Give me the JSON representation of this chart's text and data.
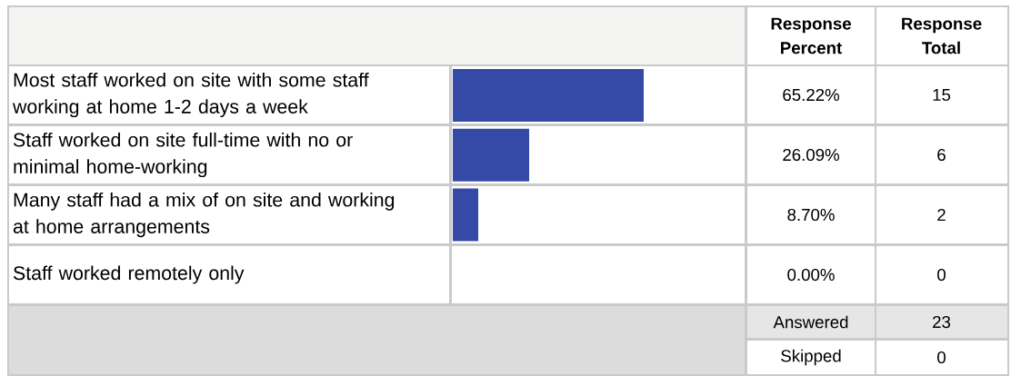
{
  "chart_data": {
    "type": "bar",
    "orientation": "horizontal",
    "categories": [
      "Most staff worked on site with some staff working at home 1-2 days a week",
      "Staff worked on site full-time with no or minimal home-working",
      "Many staff had a mix of on site and working at home arrangements",
      "Staff worked remotely only"
    ],
    "values": [
      65.22,
      26.09,
      8.7,
      0
    ],
    "value_labels": [
      "65.22%",
      "26.09%",
      "8.70%",
      "0.00%"
    ],
    "color": "#344aa6",
    "xlim": [
      0,
      100
    ],
    "tick_labels": false,
    "annotations": [
      "Response Percent",
      "Response Total",
      "15",
      "6",
      "2",
      "0",
      "Answered",
      "23",
      "Skipped",
      "0"
    ]
  }
}
